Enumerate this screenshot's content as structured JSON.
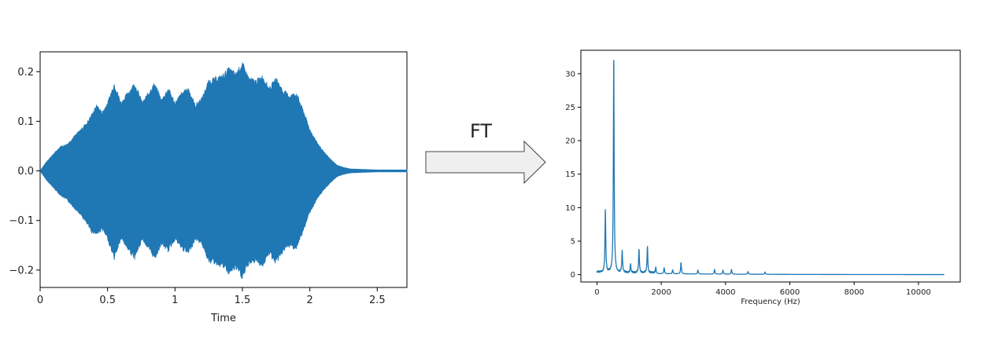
{
  "arrow_label": "FT",
  "chart_data": [
    {
      "type": "area",
      "title": "",
      "xlabel": "Time",
      "ylabel": "",
      "xlim": [
        0,
        2.72
      ],
      "ylim": [
        -0.235,
        0.24
      ],
      "xticks": [
        0,
        0.5,
        1,
        1.5,
        2,
        2.5
      ],
      "xtick_labels": [
        "0",
        "0.5",
        "1",
        "1.5",
        "2",
        "2.5"
      ],
      "yticks": [
        0.2,
        0.1,
        0.0,
        -0.1,
        -0.2
      ],
      "ytick_labels": [
        "0.2",
        "0.1",
        "0.0",
        "−0.1",
        "−0.2"
      ],
      "grid": false,
      "color": "#1f77b4",
      "series": [
        {
          "x": [
            0,
            0.05,
            0.1,
            0.15,
            0.2,
            0.25,
            0.3,
            0.35,
            0.38,
            0.42,
            0.46,
            0.5,
            0.55,
            0.6,
            0.65,
            0.7,
            0.76,
            0.8,
            0.85,
            0.9,
            0.95,
            1.0,
            1.05,
            1.1,
            1.15,
            1.2,
            1.25,
            1.3,
            1.35,
            1.4,
            1.45,
            1.5,
            1.55,
            1.6,
            1.65,
            1.7,
            1.75,
            1.8,
            1.85,
            1.9,
            1.95,
            2.0,
            2.05,
            2.1,
            2.15,
            2.2,
            2.25,
            2.3,
            2.4,
            2.5,
            2.6,
            2.72
          ],
          "upper": [
            0.0,
            0.02,
            0.035,
            0.05,
            0.055,
            0.07,
            0.085,
            0.1,
            0.115,
            0.135,
            0.12,
            0.14,
            0.18,
            0.14,
            0.16,
            0.18,
            0.14,
            0.16,
            0.18,
            0.145,
            0.17,
            0.14,
            0.16,
            0.17,
            0.135,
            0.15,
            0.185,
            0.19,
            0.195,
            0.21,
            0.2,
            0.22,
            0.19,
            0.185,
            0.195,
            0.17,
            0.19,
            0.165,
            0.155,
            0.16,
            0.125,
            0.085,
            0.06,
            0.04,
            0.025,
            0.012,
            0.007,
            0.004,
            0.003,
            0.002,
            0.002,
            0.002
          ],
          "lower": [
            0.0,
            -0.02,
            -0.035,
            -0.05,
            -0.06,
            -0.075,
            -0.09,
            -0.11,
            -0.125,
            -0.13,
            -0.12,
            -0.14,
            -0.18,
            -0.14,
            -0.16,
            -0.18,
            -0.14,
            -0.16,
            -0.18,
            -0.15,
            -0.165,
            -0.14,
            -0.16,
            -0.17,
            -0.14,
            -0.15,
            -0.185,
            -0.19,
            -0.195,
            -0.21,
            -0.2,
            -0.22,
            -0.19,
            -0.185,
            -0.195,
            -0.17,
            -0.19,
            -0.165,
            -0.155,
            -0.16,
            -0.125,
            -0.085,
            -0.06,
            -0.04,
            -0.025,
            -0.012,
            -0.007,
            -0.004,
            -0.003,
            -0.002,
            -0.002,
            -0.002
          ]
        }
      ]
    },
    {
      "type": "line",
      "title": "",
      "xlabel": "Frequency (Hz)",
      "ylabel": "",
      "xlim": [
        -500,
        11300
      ],
      "ylim": [
        -1.1,
        33.5
      ],
      "xticks": [
        0,
        2000,
        4000,
        6000,
        8000,
        10000
      ],
      "xtick_labels": [
        "0",
        "2000",
        "4000",
        "6000",
        "8000",
        "10000"
      ],
      "yticks": [
        30,
        25,
        20,
        15,
        10,
        5,
        0
      ],
      "ytick_labels": [
        "30",
        "25",
        "20",
        "15",
        "10",
        "5",
        "0"
      ],
      "grid": false,
      "color": "#1f77b4",
      "baseline": 0.3,
      "x_end": 10800,
      "peaks": [
        {
          "x": 262,
          "y": 9.3
        },
        {
          "x": 523,
          "y": 32.0
        },
        {
          "x": 785,
          "y": 3.2
        },
        {
          "x": 1046,
          "y": 1.3
        },
        {
          "x": 1308,
          "y": 3.6
        },
        {
          "x": 1570,
          "y": 4.0
        },
        {
          "x": 1830,
          "y": 1.0
        },
        {
          "x": 2090,
          "y": 0.9
        },
        {
          "x": 2355,
          "y": 0.6
        },
        {
          "x": 2615,
          "y": 1.7
        },
        {
          "x": 3140,
          "y": 0.6
        },
        {
          "x": 3660,
          "y": 0.7
        },
        {
          "x": 3920,
          "y": 0.6
        },
        {
          "x": 4185,
          "y": 0.7
        },
        {
          "x": 4700,
          "y": 0.4
        },
        {
          "x": 5230,
          "y": 0.35
        }
      ]
    }
  ]
}
